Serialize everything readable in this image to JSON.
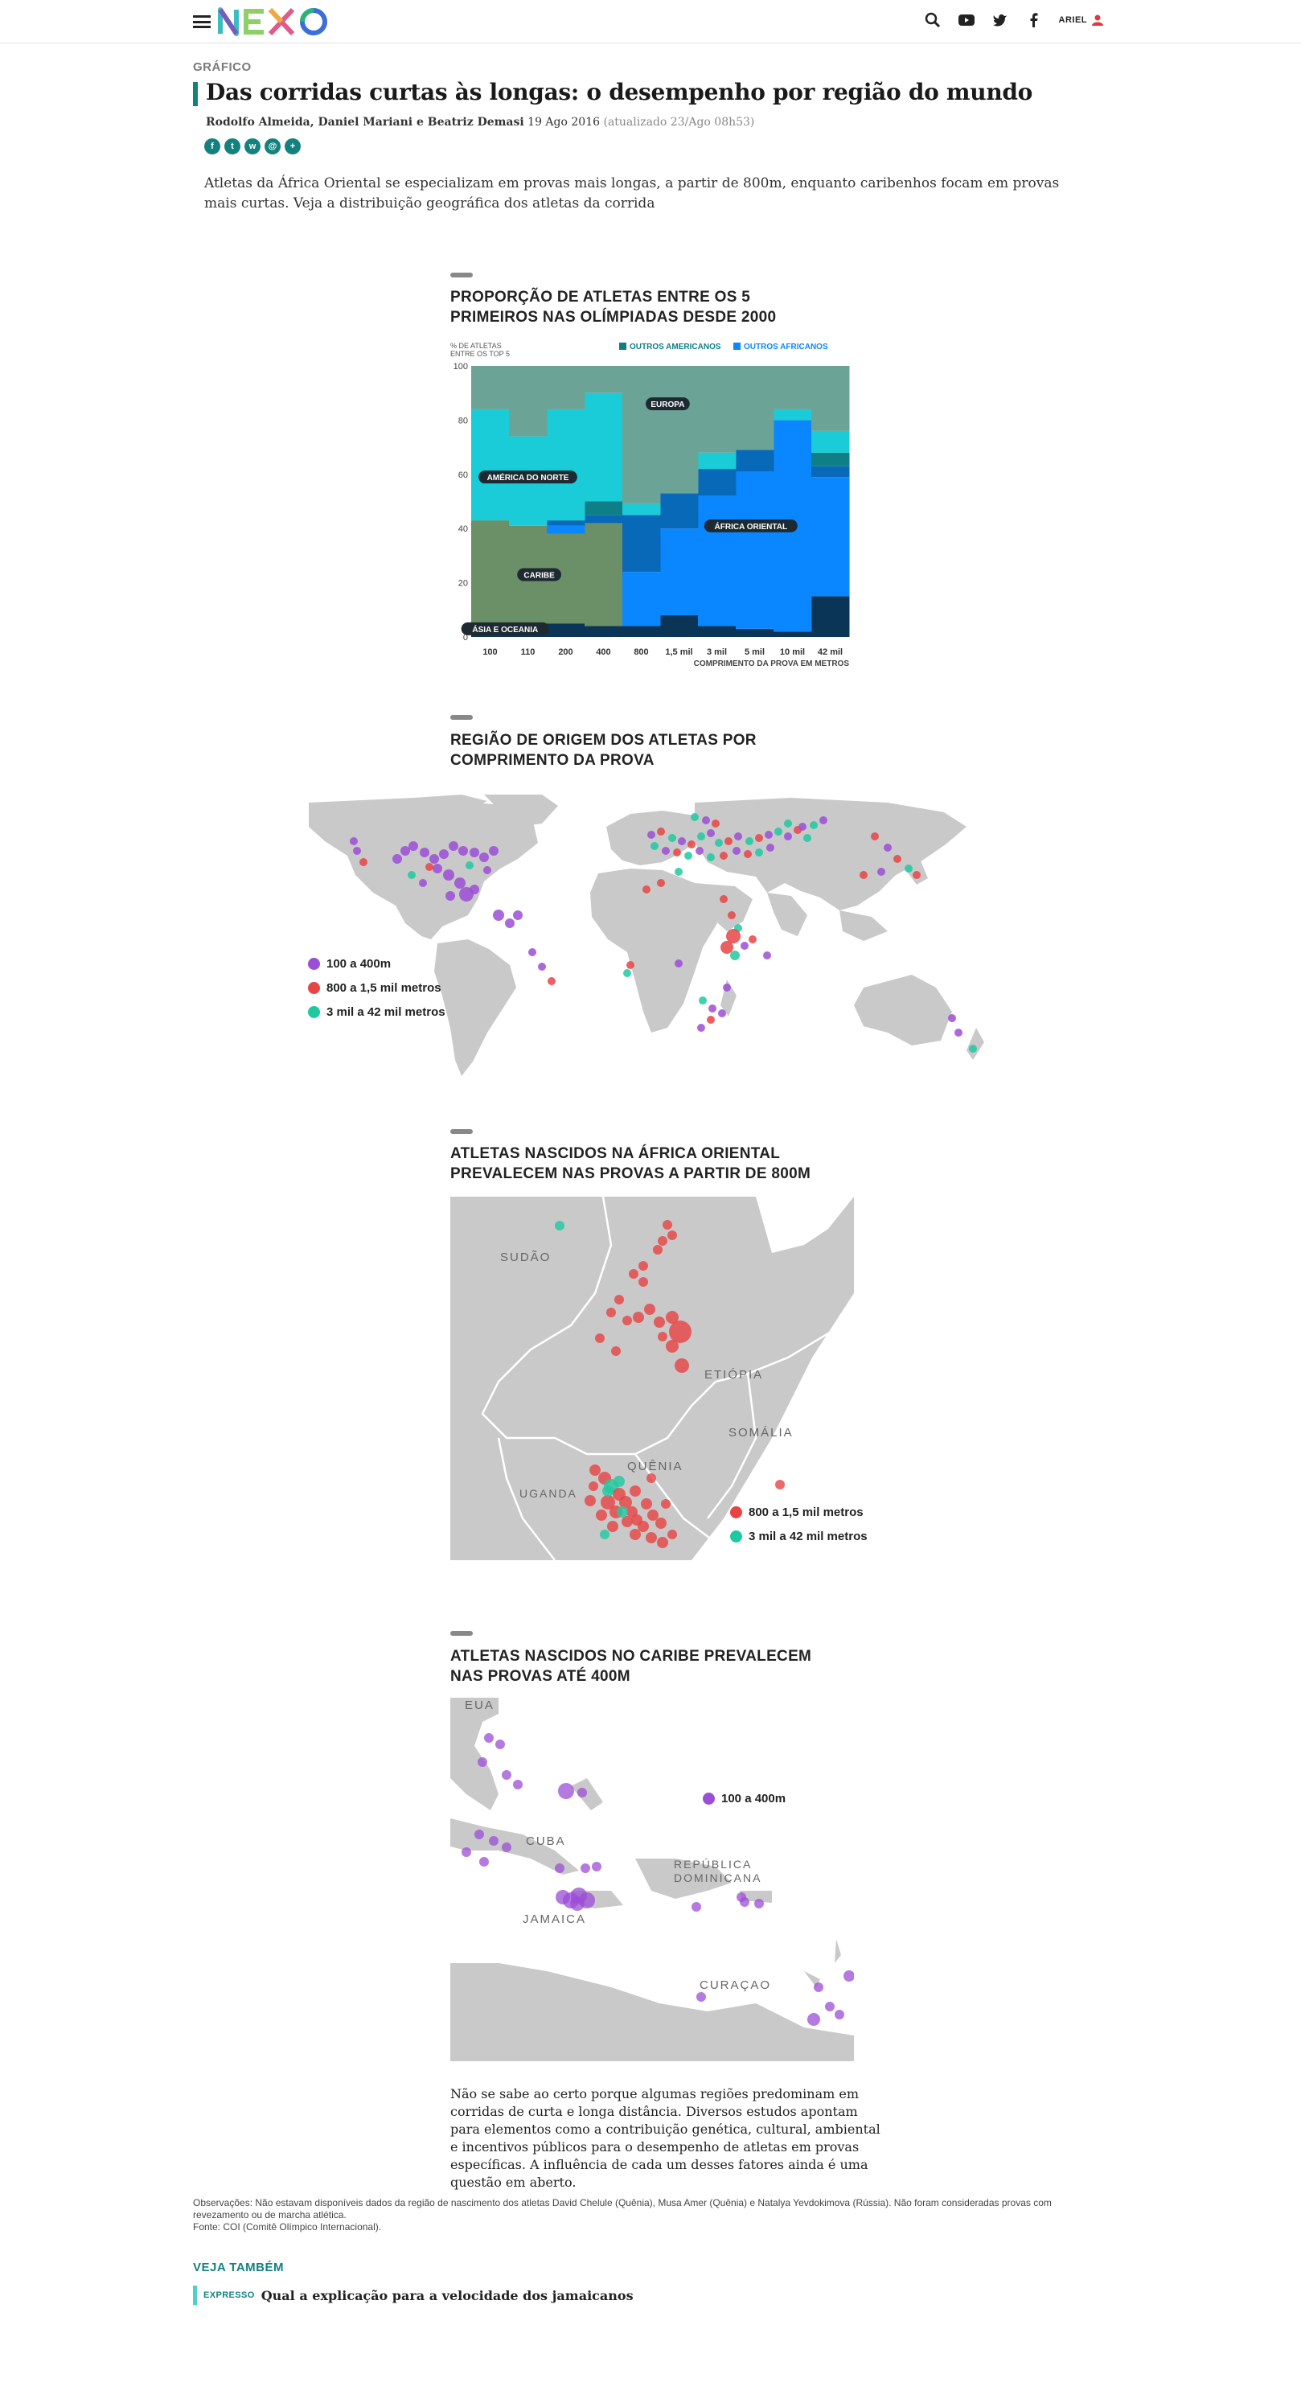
{
  "header": {
    "logo_text": "NEXO",
    "user_label": "ARIEL",
    "icons": [
      "menu-icon",
      "search-icon",
      "youtube-icon",
      "twitter-icon",
      "facebook-icon",
      "user-icon"
    ]
  },
  "article": {
    "kicker": "GRÁFICO",
    "title": "Das corridas curtas às longas: o desempenho por região do mundo",
    "authors": "Rodolfo Almeida, Daniel Mariani e Beatriz Demasi",
    "date": "19 Ago 2016",
    "updated": "(atualizado 23/Ago 08h53)",
    "share_icons": [
      "f",
      "t",
      "w",
      "@",
      "+"
    ],
    "lede": "Atletas da África Oriental se especializam em provas mais longas, a partir de 800m, enquanto caribenhos focam em provas mais curtas. Veja a distribuição geográfica dos atletas da corrida"
  },
  "chart1": {
    "title": "PROPORÇÃO DE ATLETAS ENTRE OS 5 PRIMEIROS NAS OLÍMPIADAS DESDE 2000",
    "ylabel": "% DE ATLETAS ENTRE OS TOP 5",
    "xlabel": "COMPRIMENTO DA PROVA EM METROS",
    "legend": [
      "OUTROS AMERICANOS",
      "OUTROS AFRICANOS"
    ],
    "region_labels": [
      "EUROPA",
      "AMÉRICA DO NORTE",
      "ÁFRICA ORIENTAL",
      "CARIBE",
      "ÁSIA E OCEANIA"
    ],
    "y_ticks": [
      "0",
      "20",
      "40",
      "60",
      "80",
      "100"
    ]
  },
  "chart_data": {
    "type": "area",
    "title": "PROPORÇÃO DE ATLETAS ENTRE OS 5 PRIMEIROS NAS OLÍMPIADAS DESDE 2000",
    "xlabel": "COMPRIMENTO DA PROVA EM METROS",
    "ylabel": "% DE ATLETAS ENTRE OS TOP 5",
    "ylim": [
      0,
      100
    ],
    "categories": [
      "100",
      "110",
      "200",
      "400",
      "800",
      "1,5 mil",
      "3 mil",
      "5 mil",
      "10 mil",
      "42 mil"
    ],
    "series": [
      {
        "name": "ÁSIA E OCEANIA",
        "color": "#0b3556",
        "values": [
          5,
          5,
          5,
          4,
          4,
          8,
          4,
          3,
          2,
          15
        ]
      },
      {
        "name": "CARIBE",
        "color": "#6b8f66",
        "values": [
          38,
          36,
          33,
          38,
          0,
          0,
          0,
          0,
          0,
          0
        ]
      },
      {
        "name": "ÁFRICA ORIENTAL",
        "color": "#0a87ff",
        "values": [
          0,
          0,
          3,
          0,
          20,
          32,
          48,
          58,
          78,
          44
        ]
      },
      {
        "name": "OUTROS AFRICANOS",
        "color": "#0869b9",
        "values": [
          0,
          0,
          2,
          3,
          21,
          13,
          10,
          8,
          0,
          4
        ]
      },
      {
        "name": "OUTROS AMERICANOS",
        "color": "#0e7f86",
        "values": [
          0,
          0,
          0,
          5,
          0,
          0,
          0,
          0,
          0,
          5
        ]
      },
      {
        "name": "AMÉRICA DO NORTE",
        "color": "#19ccd7",
        "values": [
          41,
          33,
          41,
          40,
          4,
          0,
          6,
          0,
          4,
          8
        ]
      },
      {
        "name": "EUROPA",
        "color": "#6ca397",
        "values": [
          16,
          26,
          16,
          10,
          51,
          47,
          32,
          31,
          16,
          24
        ]
      }
    ]
  },
  "chart2": {
    "title": "REGIÃO DE ORIGEM DOS ATLETAS POR COMPRIMENTO DA PROVA",
    "legend": [
      "100 a 400m",
      "800 a 1,5 mil metros",
      "3 mil a 42 mil metros"
    ],
    "colors": [
      "#9b4ed6",
      "#e84444",
      "#1fc9a0"
    ]
  },
  "chart3": {
    "title": "ATLETAS NASCIDOS NA ÁFRICA ORIENTAL PREVALECEM NAS PROVAS A PARTIR DE 800M",
    "labels": [
      "SUDÃO",
      "ETIÓPIA",
      "SOMÁLIA",
      "QUÊNIA",
      "UGANDA"
    ],
    "legend": [
      "800 a 1,5 mil metros",
      "3 mil a 42 mil metros"
    ]
  },
  "chart4": {
    "title": "ATLETAS NASCIDOS NO CARIBE PREVALECEM NAS PROVAS ATÉ 400M",
    "labels": [
      "EUA",
      "CUBA",
      "REPÚBLICA",
      "DOMINICANA",
      "JAMAICA",
      "CURAÇAO"
    ],
    "legend": [
      "100 a 400m"
    ]
  },
  "outro": "Não se sabe ao certo porque algumas regiões predominam em corridas de curta e longa distância. Diversos estudos apontam para elementos como a contribuição genética, cultural, ambiental e incentivos públicos para o desempenho de atletas em provas específicas. A influência de cada um desses fatores ainda é uma questão em aberto.",
  "notes": {
    "obs": "Observações: Não estavam disponíveis dados da região de nascimento dos atletas David Chelule (Quênia), Musa Amer (Quênia) e Natalya Yevdokimova (Rússia). Não foram consideradas provas com revezamento ou de marcha atlética.",
    "source": "Fonte: COI (Comitê Olímpico Internacional)."
  },
  "see_also": {
    "heading": "VEJA TAMBÉM",
    "tag": "EXPRESSO",
    "link": "Qual a explicação para a velocidade dos jamaicanos"
  }
}
